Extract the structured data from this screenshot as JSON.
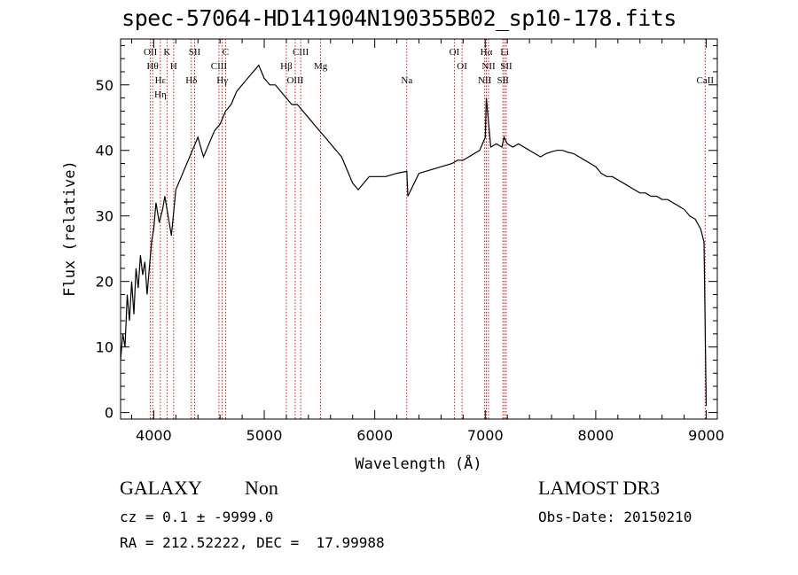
{
  "chart_data": {
    "type": "line",
    "title": "spec-57064-HD141904N190355B02_sp10-178.fits",
    "xlabel": "Wavelength (Å)",
    "ylabel": "Flux (relative)",
    "xlim": [
      3700,
      9100
    ],
    "ylim": [
      -1,
      57
    ],
    "xticks": [
      4000,
      5000,
      6000,
      7000,
      8000,
      9000
    ],
    "yticks": [
      0,
      10,
      20,
      30,
      40,
      50
    ],
    "series": [
      {
        "name": "spectrum",
        "x": [
          3700,
          3720,
          3740,
          3760,
          3780,
          3800,
          3820,
          3840,
          3860,
          3880,
          3900,
          3920,
          3940,
          3960,
          3980,
          4000,
          4020,
          4050,
          4080,
          4100,
          4130,
          4160,
          4200,
          4250,
          4300,
          4350,
          4400,
          4450,
          4500,
          4550,
          4600,
          4650,
          4700,
          4750,
          4800,
          4850,
          4900,
          4950,
          5000,
          5050,
          5100,
          5150,
          5200,
          5250,
          5300,
          5350,
          5400,
          5450,
          5500,
          5550,
          5600,
          5650,
          5700,
          5750,
          5800,
          5850,
          5900,
          5950,
          6000,
          6100,
          6200,
          6290,
          6300,
          6400,
          6500,
          6600,
          6700,
          6750,
          6800,
          6850,
          6900,
          6950,
          7000,
          7010,
          7050,
          7100,
          7150,
          7170,
          7200,
          7250,
          7300,
          7350,
          7400,
          7450,
          7500,
          7550,
          7600,
          7650,
          7700,
          7750,
          7800,
          7850,
          7900,
          7950,
          8000,
          8050,
          8100,
          8150,
          8200,
          8250,
          8300,
          8350,
          8400,
          8450,
          8500,
          8550,
          8600,
          8650,
          8700,
          8750,
          8800,
          8850,
          8900,
          8950,
          8980,
          9000
        ],
        "y": [
          8,
          12,
          10,
          18,
          14,
          20,
          15,
          22,
          19,
          24,
          21,
          23,
          18,
          22,
          26,
          28,
          32,
          29,
          31,
          33,
          30,
          27,
          34,
          36,
          38,
          40,
          42,
          39,
          41,
          43,
          44,
          46,
          47,
          49,
          50,
          51,
          52,
          53,
          51,
          50,
          50,
          49,
          48,
          47,
          47,
          46,
          45,
          44,
          43,
          42,
          41,
          40,
          39,
          37,
          35,
          34,
          35,
          36,
          36,
          36,
          36.5,
          36.8,
          33,
          36.5,
          37,
          37.5,
          38,
          38.5,
          38.5,
          39,
          39.5,
          40,
          42,
          48,
          40.5,
          41,
          40.5,
          42,
          41,
          40.5,
          41,
          40.5,
          40,
          39.5,
          39,
          39.5,
          39.8,
          40,
          40,
          39.7,
          39.5,
          39,
          38.5,
          38,
          37.5,
          36.5,
          36,
          36,
          35.5,
          35,
          34.5,
          34,
          33.5,
          33.5,
          33,
          33,
          32.5,
          32.5,
          32,
          31.5,
          31,
          30,
          29.5,
          28,
          26,
          1
        ]
      }
    ],
    "line_markers": [
      {
        "wavelength": 3970,
        "labels": [
          "OII"
        ]
      },
      {
        "wavelength": 3990,
        "labels": [
          "Hθ"
        ]
      },
      {
        "wavelength": 4060,
        "labels": [
          "Hε",
          "Hη"
        ]
      },
      {
        "wavelength": 4120,
        "labels": [
          "K"
        ]
      },
      {
        "wavelength": 4180,
        "labels": [
          "H"
        ]
      },
      {
        "wavelength": 4340,
        "labels": [
          "Hδ"
        ]
      },
      {
        "wavelength": 4370,
        "labels": [
          "SII"
        ]
      },
      {
        "wavelength": 4590,
        "labels": [
          "CIII"
        ]
      },
      {
        "wavelength": 4620,
        "labels": [
          "Hγ"
        ]
      },
      {
        "wavelength": 4650,
        "labels": [
          "C"
        ]
      },
      {
        "wavelength": 5200,
        "labels": [
          "Hβ"
        ]
      },
      {
        "wavelength": 5280,
        "labels": [
          "OIII"
        ]
      },
      {
        "wavelength": 5330,
        "labels": [
          "CIII"
        ]
      },
      {
        "wavelength": 5510,
        "labels": [
          "Mg"
        ]
      },
      {
        "wavelength": 6290,
        "labels": [
          "Na"
        ]
      },
      {
        "wavelength": 6720,
        "labels": [
          "OI"
        ]
      },
      {
        "wavelength": 6790,
        "labels": [
          "OI"
        ]
      },
      {
        "wavelength": 6995,
        "labels": [
          "NII"
        ]
      },
      {
        "wavelength": 7010,
        "labels": [
          "Hα"
        ]
      },
      {
        "wavelength": 7030,
        "labels": [
          "NII"
        ]
      },
      {
        "wavelength": 7160,
        "labels": [
          "SII"
        ]
      },
      {
        "wavelength": 7175,
        "labels": [
          "Li"
        ]
      },
      {
        "wavelength": 7190,
        "labels": [
          "SII"
        ]
      },
      {
        "wavelength": 8990,
        "labels": [
          "CaII"
        ]
      }
    ],
    "line_color": "#000000",
    "marker_color": "#cc0000"
  },
  "info": {
    "class_label": "GALAXY",
    "subclass": "Non",
    "survey": "LAMOST DR3",
    "cz_line": "cz = 0.1 ± -9999.0",
    "obs_date": "Obs-Date: 20150210",
    "coords": "RA = 212.52222, DEC =  17.99988"
  }
}
